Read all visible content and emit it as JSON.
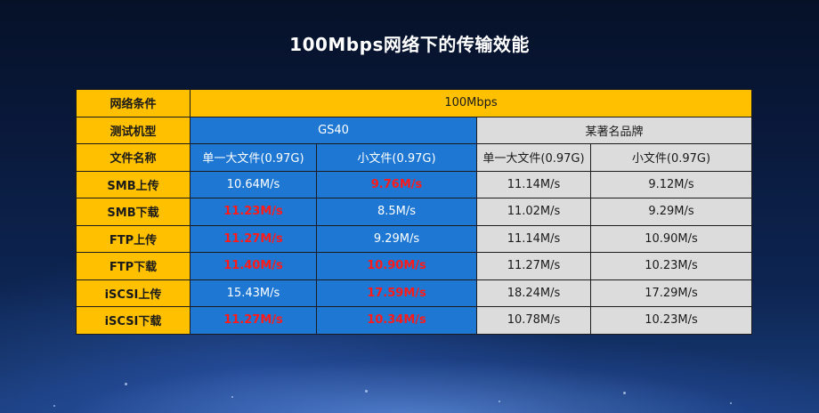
{
  "title": "100Mbps网络下的传输效能",
  "table": {
    "network_label": "网络条件",
    "network_value": "100Mbps",
    "model_label": "测试机型",
    "model_gs40": "GS40",
    "model_brand": "某著名品牌",
    "file_label": "文件名称",
    "file_cols": [
      "单一大文件(0.97G)",
      "小文件(0.97G)",
      "单一大文件(0.97G)",
      "小文件(0.97G)"
    ],
    "rows": [
      {
        "label": "SMB上传",
        "values": [
          "10.64M/s",
          "9.76M/s",
          "11.14M/s",
          "9.12M/s"
        ]
      },
      {
        "label": "SMB下载",
        "values": [
          "11.23M/s",
          "8.5M/s",
          "11.02M/s",
          "9.29M/s"
        ]
      },
      {
        "label": "FTP上传",
        "values": [
          "11.27M/s",
          "9.29M/s",
          "11.14M/s",
          "10.90M/s"
        ]
      },
      {
        "label": "FTP下载",
        "values": [
          "11.40M/s",
          "10.90M/s",
          "11.27M/s",
          "10.23M/s"
        ]
      },
      {
        "label": "iSCSI上传",
        "values": [
          "15.43M/s",
          "17.59M/s",
          "18.24M/s",
          "17.29M/s"
        ]
      },
      {
        "label": "iSCSI下载",
        "values": [
          "11.27M/s",
          "10.34M/s",
          "10.78M/s",
          "10.23M/s"
        ]
      }
    ]
  },
  "colors": {
    "highlight": "#ff1a1a",
    "gs40_bg": "#1e78d3",
    "label_bg": "#ffc000",
    "brand_bg": "#dcdcdc"
  }
}
